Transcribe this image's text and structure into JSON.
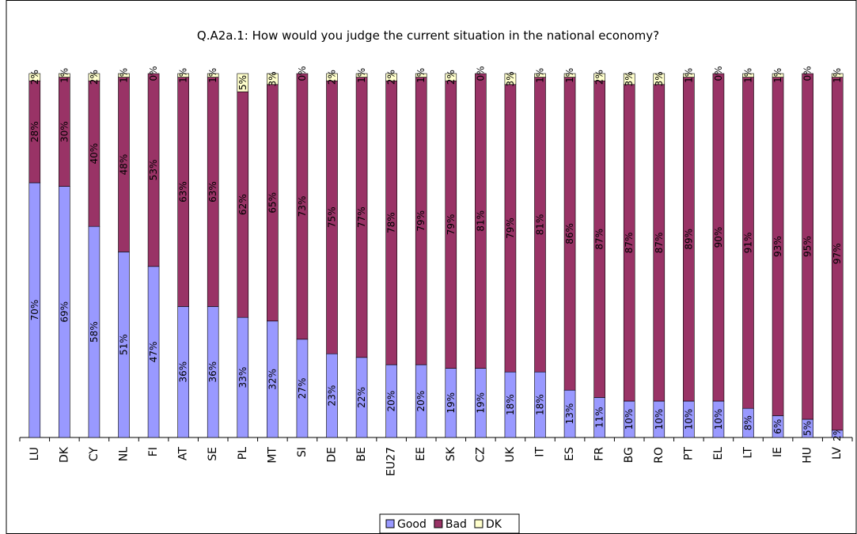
{
  "chart_data": {
    "type": "stacked_bar",
    "title": "Q.A2a.1: How would you judge the current situation in the national economy?",
    "categories": [
      "LU",
      "DK",
      "CY",
      "NL",
      "FI",
      "AT",
      "SE",
      "PL",
      "MT",
      "SI",
      "DE",
      "BE",
      "EU27",
      "EE",
      "SK",
      "CZ",
      "UK",
      "IT",
      "ES",
      "FR",
      "BG",
      "RO",
      "PT",
      "EL",
      "LT",
      "IE",
      "HU",
      "LV"
    ],
    "ylim": [
      0,
      100
    ],
    "legend": "bottom",
    "series": [
      {
        "name": "Good",
        "color": "#9999ff",
        "values": [
          70,
          69,
          58,
          51,
          47,
          36,
          36,
          33,
          32,
          27,
          23,
          22,
          20,
          20,
          19,
          19,
          18,
          18,
          13,
          11,
          10,
          10,
          10,
          10,
          8,
          6,
          5,
          2
        ],
        "value_labels": [
          "70%",
          "69%",
          "58%",
          "51%",
          "47%",
          "36%",
          "36%",
          "33%",
          "32%",
          "27%",
          "23%",
          "22%",
          "20%",
          "20%",
          "19%",
          "19%",
          "18%",
          "18%",
          "13%",
          "11%",
          "10%",
          "10%",
          "10%",
          "10%",
          "8%",
          "6%",
          "5%",
          "2%"
        ]
      },
      {
        "name": "Bad",
        "color": "#993366",
        "values": [
          28,
          30,
          40,
          48,
          53,
          63,
          63,
          62,
          65,
          73,
          75,
          77,
          78,
          79,
          79,
          81,
          79,
          81,
          86,
          87,
          87,
          87,
          89,
          90,
          91,
          93,
          95,
          97
        ],
        "value_labels": [
          "28%",
          "30%",
          "40%",
          "48%",
          "53%",
          "63%",
          "63%",
          "62%",
          "65%",
          "73%",
          "75%",
          "77%",
          "78%",
          "79%",
          "79%",
          "81%",
          "79%",
          "81%",
          "86%",
          "87%",
          "87%",
          "87%",
          "89%",
          "90%",
          "91%",
          "93%",
          "95%",
          "97%"
        ]
      },
      {
        "name": "DK",
        "color": "#ffffcc",
        "values": [
          2,
          1,
          2,
          1,
          0,
          1,
          1,
          5,
          3,
          0,
          2,
          1,
          2,
          1,
          2,
          0,
          3,
          1,
          1,
          2,
          3,
          3,
          1,
          0,
          1,
          1,
          0,
          1
        ],
        "value_labels": [
          "2%",
          "1%",
          "2%",
          "1%",
          "0%",
          "1%",
          "1%",
          "5%",
          "3%",
          "0%",
          "2%",
          "1%",
          "2%",
          "1%",
          "2%",
          "0%",
          "3%",
          "1%",
          "1%",
          "2%",
          "3%",
          "3%",
          "1%",
          "0%",
          "1%",
          "1%",
          "0%",
          "1%"
        ]
      }
    ]
  }
}
